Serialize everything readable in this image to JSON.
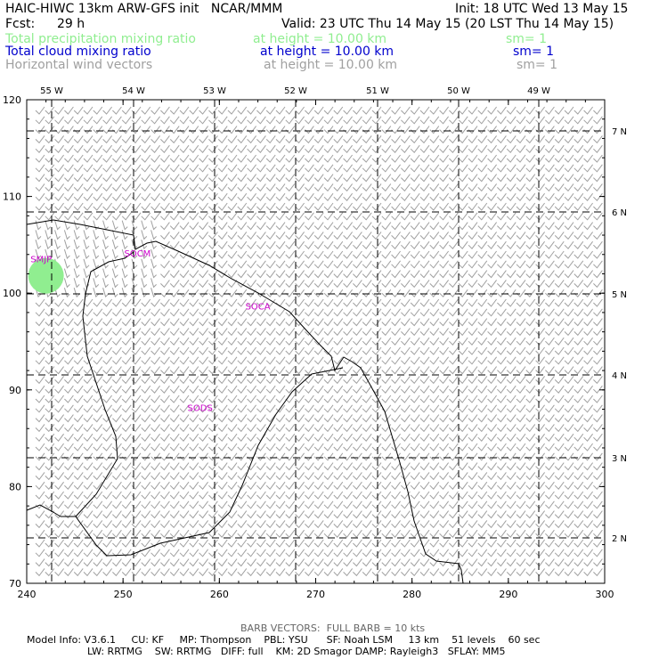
{
  "header": {
    "title": "HAIC-HIWC 13km ARW-GFS init   NCAR/MMM",
    "init": "Init: 18 UTC Wed 13 May 15",
    "fcst_label": "Fcst:",
    "fcst_value": "29 h",
    "valid": "Valid: 23 UTC Thu 14 May 15 (20 LST Thu 14 May 15)"
  },
  "fields": [
    {
      "name": "Total precipitation mixing ratio",
      "height": "at height = 10.00 km",
      "sm": "sm= 1",
      "color": "#90ee90"
    },
    {
      "name": "Total cloud mixing ratio",
      "height": "at height = 10.00 km",
      "sm": "sm= 1",
      "color": "#0000cd"
    },
    {
      "name": "Horizontal wind vectors",
      "height": "at height = 10.00 km",
      "sm": "sm= 1",
      "color": "#a0a0a0"
    }
  ],
  "map": {
    "x_ticks": [
      "240",
      "250",
      "260",
      "270",
      "280",
      "290",
      "300"
    ],
    "y_ticks": [
      "70",
      "80",
      "90",
      "100",
      "110",
      "120"
    ],
    "lon_labels": [
      "55 W",
      "54 W",
      "53 W",
      "52 W",
      "51 W",
      "50 W",
      "49 W"
    ],
    "lat_labels": [
      "7 N",
      "6 N",
      "5 N",
      "4 N",
      "3 N",
      "2 N"
    ],
    "stations": [
      {
        "id": "SMJP",
        "x": 241.5,
        "y": 103.2
      },
      {
        "id": "SOCM",
        "x": 251.5,
        "y": 103.8
      },
      {
        "id": "SOCA",
        "x": 264.0,
        "y": 98.3
      },
      {
        "id": "SODS",
        "x": 258.0,
        "y": 87.8
      }
    ],
    "precip_blob": {
      "x": 242.0,
      "y": 101.8,
      "color": "#90ee90"
    },
    "coast_color": "#000000",
    "grid_color": "#000000",
    "barb_color": "#a0a0a0",
    "station_color": "#cc00cc"
  },
  "footer": {
    "barb_note": "BARB VECTORS:  FULL BARB = 10 kts",
    "line1": "Model Info: V3.6.1     CU: KF     MP: Thompson    PBL: YSU      SF: Noah LSM     13 km    51 levels    60 sec",
    "line2": "LW: RRTMG    SW: RRTMG   DIFF: full    KM: 2D Smagor DAMP: Rayleigh3   SFLAY: MM5"
  }
}
